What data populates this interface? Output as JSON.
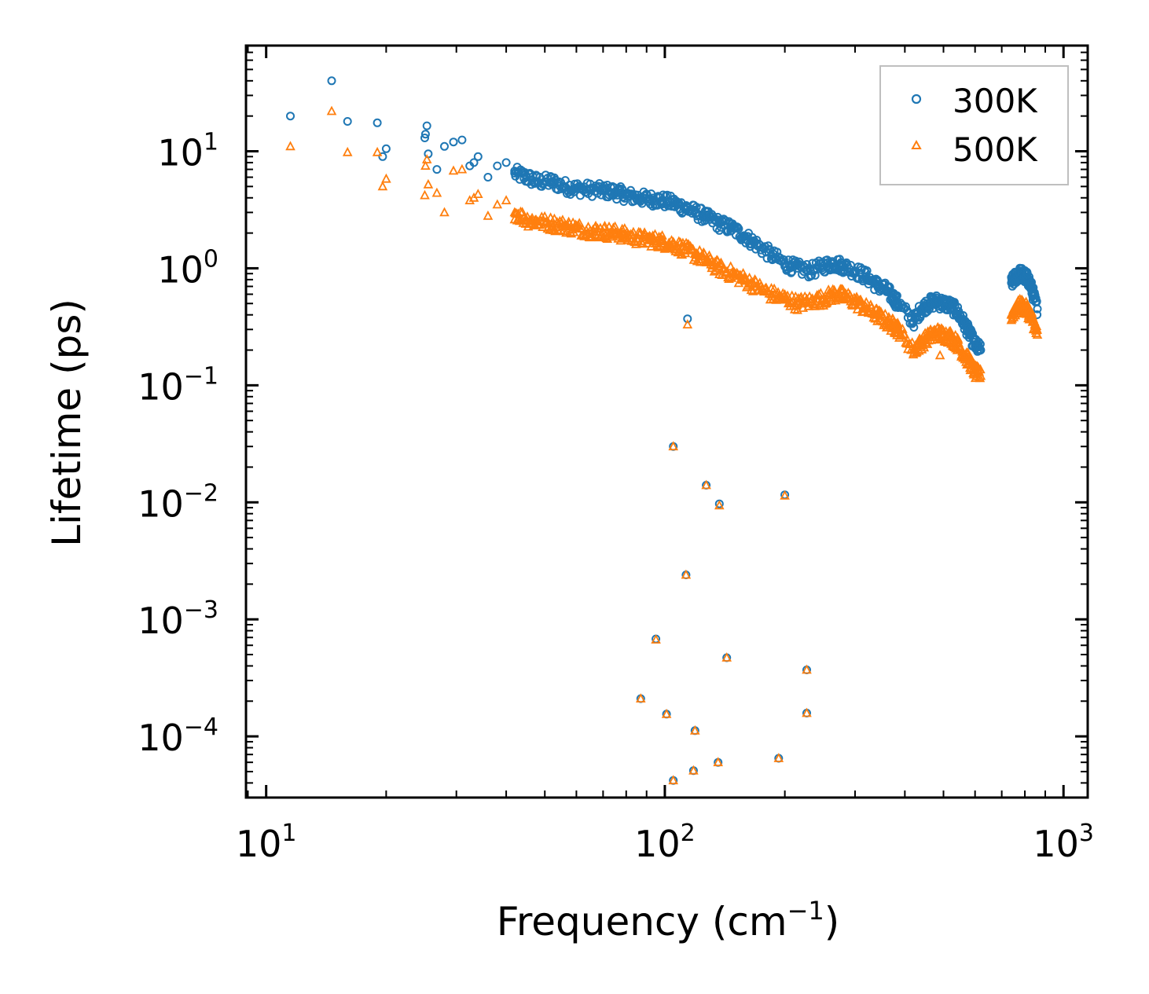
{
  "chart_data": {
    "type": "scatter",
    "title": "",
    "xlabel": "Frequency (cm",
    "xlabel_sup": "−1",
    "xlabel_end": ")",
    "ylabel": "Lifetime (ps)",
    "xscale": "log",
    "yscale": "log",
    "xlim": [
      8.9,
      1150
    ],
    "ylim": [
      3e-05,
      80
    ],
    "legend_position": "top-right",
    "x_ticks": [
      {
        "value": 10,
        "base": "10",
        "exp": "1"
      },
      {
        "value": 100,
        "base": "10",
        "exp": "2"
      },
      {
        "value": 1000,
        "base": "10",
        "exp": "3"
      }
    ],
    "y_ticks": [
      {
        "value": 10,
        "base": "10",
        "exp": "1"
      },
      {
        "value": 1,
        "base": "10",
        "exp": "0"
      },
      {
        "value": 0.1,
        "base": "10",
        "exp": "−1"
      },
      {
        "value": 0.01,
        "base": "10",
        "exp": "−2"
      },
      {
        "value": 0.001,
        "base": "10",
        "exp": "−3"
      },
      {
        "value": 0.0001,
        "base": "10",
        "exp": "−4"
      }
    ],
    "series": [
      {
        "name": "300K",
        "marker": "circle",
        "color": "#1f77b4",
        "x": [
          11.5,
          14.6,
          16.0,
          19.0,
          19.6,
          20.0,
          25.0,
          25.1,
          25.3,
          25.5,
          26.8,
          28.0,
          29.5,
          31.0,
          32.4,
          33.2,
          34.0,
          36.0,
          38.0,
          40.0,
          42.0,
          45.0,
          48.0,
          52.0,
          56.0,
          60.0,
          65.0,
          70.0,
          75.0,
          80.0,
          86.0,
          92.0,
          98.0,
          105.0,
          112.0,
          120.0,
          128.0,
          137.0,
          147.0,
          158.0,
          170.0,
          185.0,
          200.0,
          215.0,
          232.0,
          250.0,
          265.0,
          280.0,
          300.0,
          320.0,
          340.0,
          360.0,
          376.0,
          385.0,
          420.0,
          440.0,
          460.0,
          480.0,
          500.0,
          520.0,
          540.0,
          560.0,
          580.0,
          600.0,
          620.0,
          740.0,
          760.0,
          780.0,
          800.0,
          820.0,
          840.0,
          860.0
        ],
        "y": [
          20.0,
          40.0,
          18.0,
          17.5,
          9.0,
          10.5,
          13.0,
          14.0,
          16.5,
          9.5,
          7.0,
          11.0,
          12.0,
          12.5,
          7.5,
          8.0,
          9.0,
          6.0,
          7.5,
          8.0,
          6.5,
          6.0,
          5.5,
          5.5,
          5.0,
          4.8,
          4.7,
          4.6,
          4.5,
          4.2,
          4.0,
          3.9,
          3.8,
          3.6,
          3.3,
          3.0,
          2.7,
          2.4,
          2.2,
          1.9,
          1.6,
          1.3,
          1.1,
          1.0,
          0.95,
          1.05,
          1.1,
          1.05,
          0.95,
          0.85,
          0.72,
          0.65,
          0.55,
          0.5,
          0.35,
          0.45,
          0.5,
          0.52,
          0.5,
          0.48,
          0.43,
          0.35,
          0.28,
          0.22,
          0.2,
          0.75,
          0.85,
          0.9,
          0.85,
          0.78,
          0.6,
          0.45
        ],
        "outliers_x": [
          114.0,
          105.0,
          127.0,
          137.0,
          200.0,
          113.0,
          95.0,
          143.0,
          227.0,
          87.0,
          101.0,
          227.0,
          119.0,
          105.0,
          118.0,
          136.0,
          193.0
        ],
        "outliers_y": [
          0.37,
          0.03,
          0.014,
          0.0097,
          0.0116,
          0.0024,
          0.00068,
          0.00047,
          0.00037,
          0.00021,
          0.000155,
          0.000158,
          0.000112,
          4.2e-05,
          5.1e-05,
          6e-05,
          6.5e-05
        ]
      },
      {
        "name": "500K",
        "marker": "triangle",
        "color": "#ff7f0e",
        "x": [
          11.5,
          14.6,
          16.0,
          19.0,
          19.6,
          20.0,
          25.0,
          25.1,
          25.3,
          25.5,
          26.8,
          28.0,
          29.5,
          31.0,
          32.4,
          33.2,
          34.0,
          36.0,
          38.0,
          40.0,
          42.0,
          45.0,
          48.0,
          52.0,
          56.0,
          60.0,
          65.0,
          70.0,
          75.0,
          80.0,
          86.0,
          92.0,
          98.0,
          105.0,
          112.0,
          120.0,
          128.0,
          137.0,
          147.0,
          158.0,
          170.0,
          185.0,
          200.0,
          215.0,
          232.0,
          250.0,
          265.0,
          280.0,
          300.0,
          320.0,
          340.0,
          360.0,
          376.0,
          385.0,
          420.0,
          440.0,
          460.0,
          480.0,
          500.0,
          520.0,
          540.0,
          560.0,
          580.0,
          600.0,
          620.0,
          740.0,
          760.0,
          780.0,
          800.0,
          820.0,
          840.0,
          860.0
        ],
        "y": [
          11.0,
          22.0,
          9.8,
          9.8,
          5.0,
          5.8,
          4.2,
          7.5,
          8.5,
          5.2,
          4.4,
          3.0,
          6.8,
          7.0,
          3.8,
          4.0,
          4.3,
          2.8,
          3.5,
          3.8,
          3.0,
          2.6,
          2.5,
          2.4,
          2.3,
          2.2,
          2.1,
          2.05,
          2.0,
          1.9,
          1.8,
          1.75,
          1.7,
          1.6,
          1.45,
          1.3,
          1.15,
          1.0,
          0.9,
          0.8,
          0.7,
          0.6,
          0.55,
          0.5,
          0.52,
          0.55,
          0.6,
          0.58,
          0.52,
          0.45,
          0.4,
          0.35,
          0.32,
          0.3,
          0.2,
          0.23,
          0.26,
          0.28,
          0.27,
          0.26,
          0.23,
          0.19,
          0.16,
          0.13,
          0.12,
          0.4,
          0.45,
          0.48,
          0.46,
          0.42,
          0.35,
          0.27
        ],
        "outliers_x": [
          114.0,
          105.0,
          127.0,
          137.0,
          200.0,
          113.0,
          95.0,
          143.0,
          227.0,
          87.0,
          101.0,
          227.0,
          119.0,
          105.0,
          118.0,
          136.0,
          193.0,
          490.0
        ],
        "outliers_y": [
          0.33,
          0.03,
          0.014,
          0.0094,
          0.0114,
          0.0024,
          0.00067,
          0.00047,
          0.00037,
          0.00021,
          0.000155,
          0.000158,
          0.000112,
          4.2e-05,
          5.1e-05,
          6e-05,
          6.5e-05,
          0.18
        ]
      }
    ]
  }
}
